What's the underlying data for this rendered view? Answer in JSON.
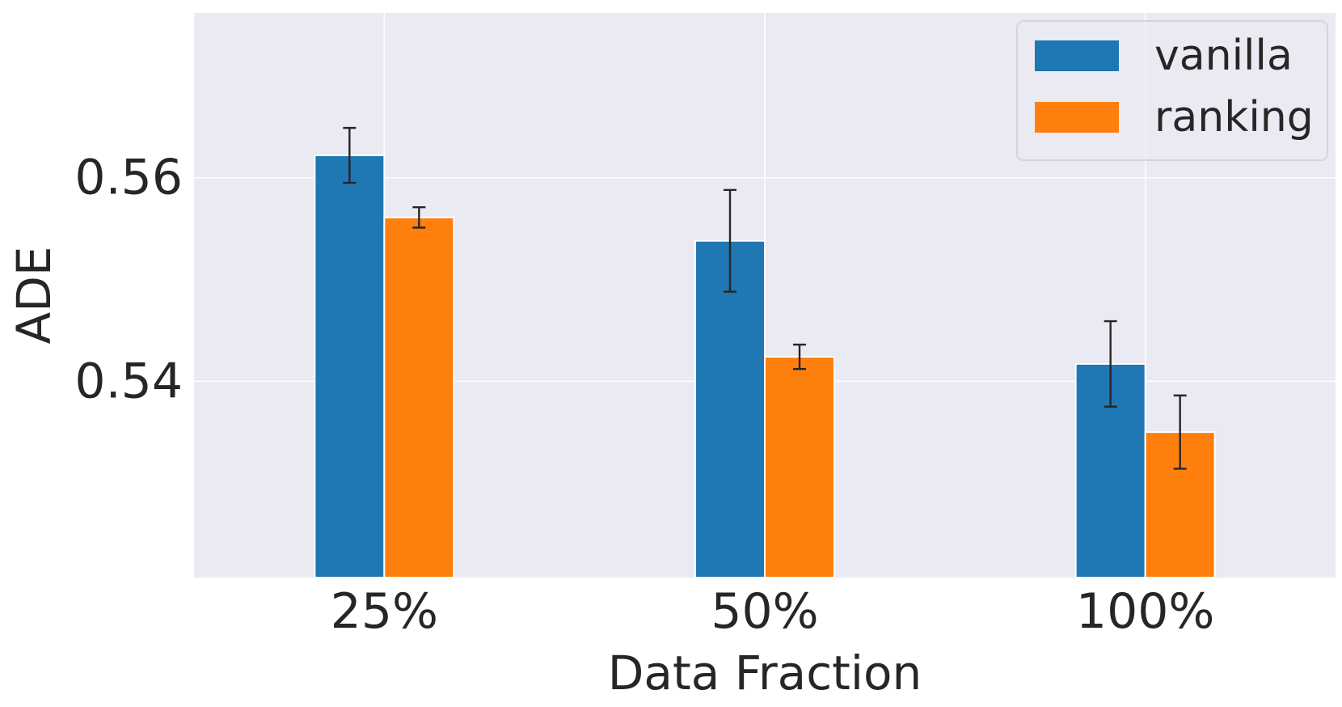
{
  "chart_data": {
    "type": "bar",
    "title": "",
    "xlabel": "Data Fraction",
    "ylabel": "ADE",
    "categories": [
      "25%",
      "50%",
      "100%"
    ],
    "series": [
      {
        "name": "vanilla",
        "color": "#1f77b4",
        "values": [
          0.5622,
          0.5538,
          0.5417
        ],
        "errors": [
          0.0027,
          0.005,
          0.0042
        ]
      },
      {
        "name": "ranking",
        "color": "#ff7f0e",
        "values": [
          0.5561,
          0.5424,
          0.535
        ],
        "errors": [
          0.001,
          0.0012,
          0.0036
        ]
      }
    ],
    "ylim": [
      0.5207,
      0.5762
    ],
    "yticks": [
      0.54,
      0.56
    ],
    "ytick_labels": [
      "0.54",
      "0.56"
    ],
    "grid": true,
    "background_color": "#eaeaf2",
    "grid_color": "#ffffff",
    "error_bar_color": "#262626",
    "legend_position": "top-right"
  }
}
